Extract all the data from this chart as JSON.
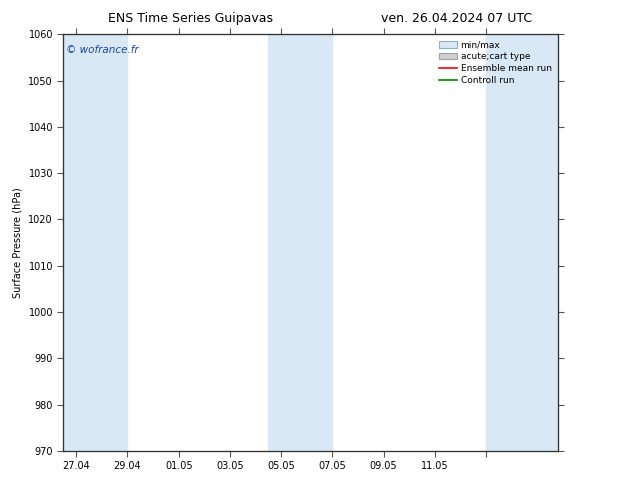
{
  "title_left": "ENS Time Series Guipavas",
  "title_right": "ven. 26.04.2024 07 UTC",
  "ylabel": "Surface Pressure (hPa)",
  "ylim": [
    970,
    1060
  ],
  "yticks": [
    970,
    980,
    990,
    1000,
    1010,
    1020,
    1030,
    1040,
    1050,
    1060
  ],
  "watermark": "© wofrance.fr",
  "background_color": "#ffffff",
  "plot_bg_color": "#ffffff",
  "band_color": "#d8e8f5",
  "x_start": 26.5,
  "x_end": 45.8,
  "x_tick_positions": [
    27,
    29,
    31,
    33,
    35,
    37,
    39,
    41,
    43
  ],
  "x_tick_labels": [
    "27.04",
    "29.04",
    "01.05",
    "03.05",
    "05.05",
    "07.05",
    "09.05",
    "11.05",
    ""
  ],
  "shaded_regions": [
    {
      "xmin": 26.5,
      "xmax": 29.0
    },
    {
      "xmin": 34.5,
      "xmax": 37.0
    },
    {
      "xmin": 43.0,
      "xmax": 45.8
    }
  ],
  "legend_min_max_color": "#d8e8f5",
  "legend_min_max_edge": "#8ab0cc",
  "legend_acute_color": "#d0d0d0",
  "legend_acute_edge": "#a0a0a0",
  "legend_ensemble_color": "#ff0000",
  "legend_control_color": "#008800"
}
